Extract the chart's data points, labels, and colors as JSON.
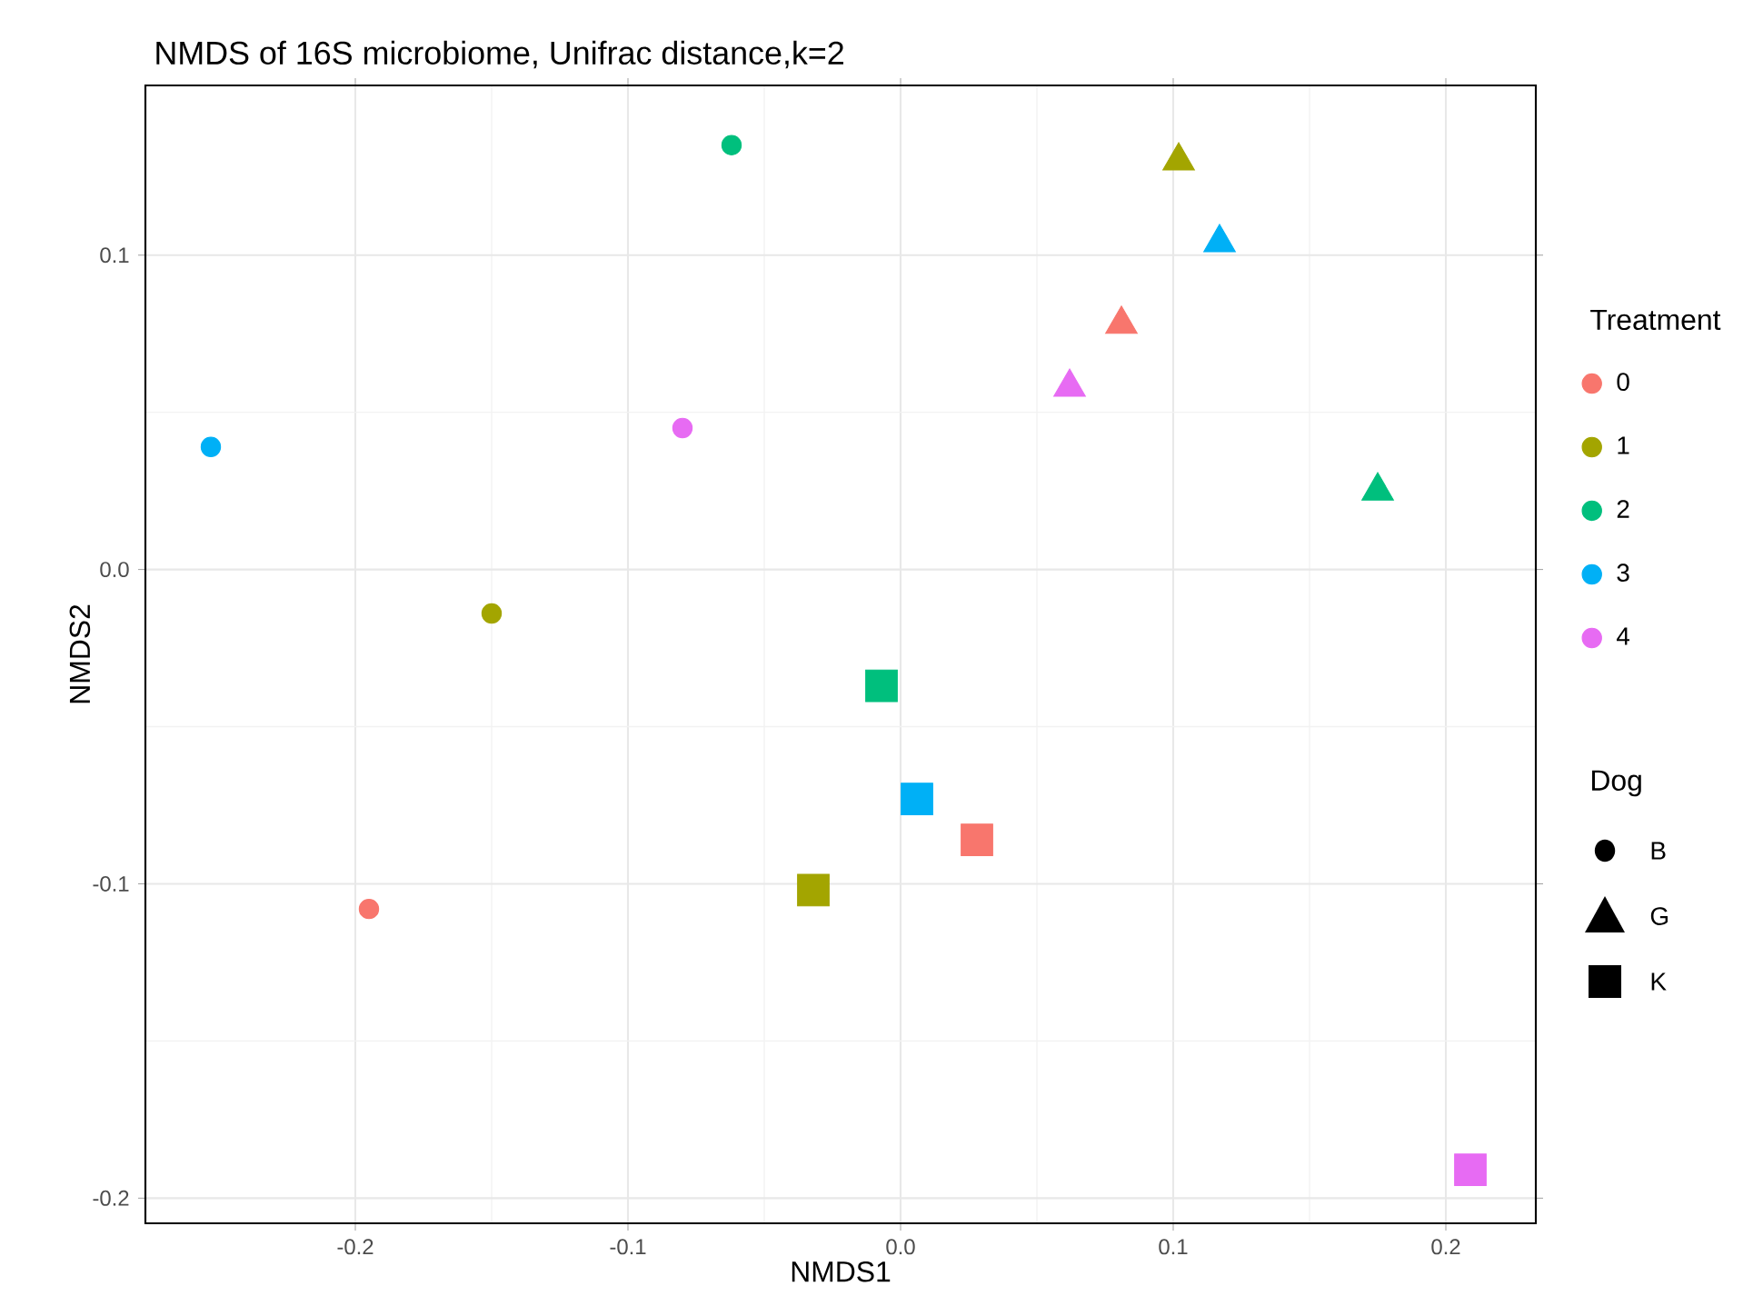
{
  "chart_data": {
    "type": "scatter",
    "title": "NMDS of 16S microbiome, Unifrac distance,k=2",
    "xlabel": "NMDS1",
    "ylabel": "NMDS2",
    "xlim": [
      -0.277,
      0.233
    ],
    "ylim": [
      -0.208,
      0.154
    ],
    "xticks": [
      -0.2,
      -0.1,
      {
        "value": 0,
        "label": "0.0"
      },
      0.1,
      0.2
    ],
    "yticks": [
      -0.2,
      -0.1,
      {
        "value": 0,
        "label": "0.0"
      },
      0.1
    ],
    "grid": true,
    "legend": "right",
    "legend_title": "Treatment",
    "annotations": [
      "Dog",
      "B",
      "G",
      "K"
    ],
    "series": [
      {
        "name": "0",
        "color": "#f8766d",
        "marker": "circle",
        "x": [
          -0.195
        ],
        "values": [
          -0.108
        ]
      },
      {
        "name": "1",
        "color": "#a3a500",
        "marker": "circle",
        "x": [
          -0.15
        ],
        "values": [
          -0.014
        ]
      },
      {
        "name": "2",
        "color": "#00bf7d",
        "marker": "circle",
        "x": [
          -0.062
        ],
        "values": [
          0.135
        ]
      },
      {
        "name": "3",
        "color": "#00b0f6",
        "marker": "circle",
        "x": [
          -0.253
        ],
        "values": [
          0.039
        ]
      },
      {
        "name": "4",
        "color": "#e76bf3",
        "marker": "circle",
        "x": [
          -0.08
        ],
        "values": [
          0.045
        ]
      },
      {
        "color": "#f8766d",
        "marker": "triangle",
        "x": [
          0.081
        ],
        "values": [
          0.078
        ]
      },
      {
        "color": "#a3a500",
        "marker": "triangle",
        "x": [
          0.102
        ],
        "values": [
          0.13
        ]
      },
      {
        "color": "#00bf7d",
        "marker": "triangle",
        "x": [
          0.175
        ],
        "values": [
          0.025
        ]
      },
      {
        "color": "#00b0f6",
        "marker": "triangle",
        "x": [
          0.117
        ],
        "values": [
          0.104
        ]
      },
      {
        "color": "#e76bf3",
        "marker": "triangle",
        "x": [
          0.062
        ],
        "values": [
          0.058
        ]
      },
      {
        "color": "#f8766d",
        "marker": "square",
        "x": [
          0.028
        ],
        "values": [
          -0.086
        ]
      },
      {
        "color": "#a3a500",
        "marker": "square",
        "x": [
          -0.032
        ],
        "values": [
          -0.102
        ]
      },
      {
        "color": "#00bf7d",
        "marker": "square",
        "x": [
          -0.007
        ],
        "values": [
          -0.037
        ]
      },
      {
        "color": "#00b0f6",
        "marker": "square",
        "x": [
          0.006
        ],
        "values": [
          -0.073
        ]
      },
      {
        "color": "#e76bf3",
        "marker": "square",
        "x": [
          0.209
        ],
        "values": [
          -0.191
        ]
      }
    ]
  }
}
